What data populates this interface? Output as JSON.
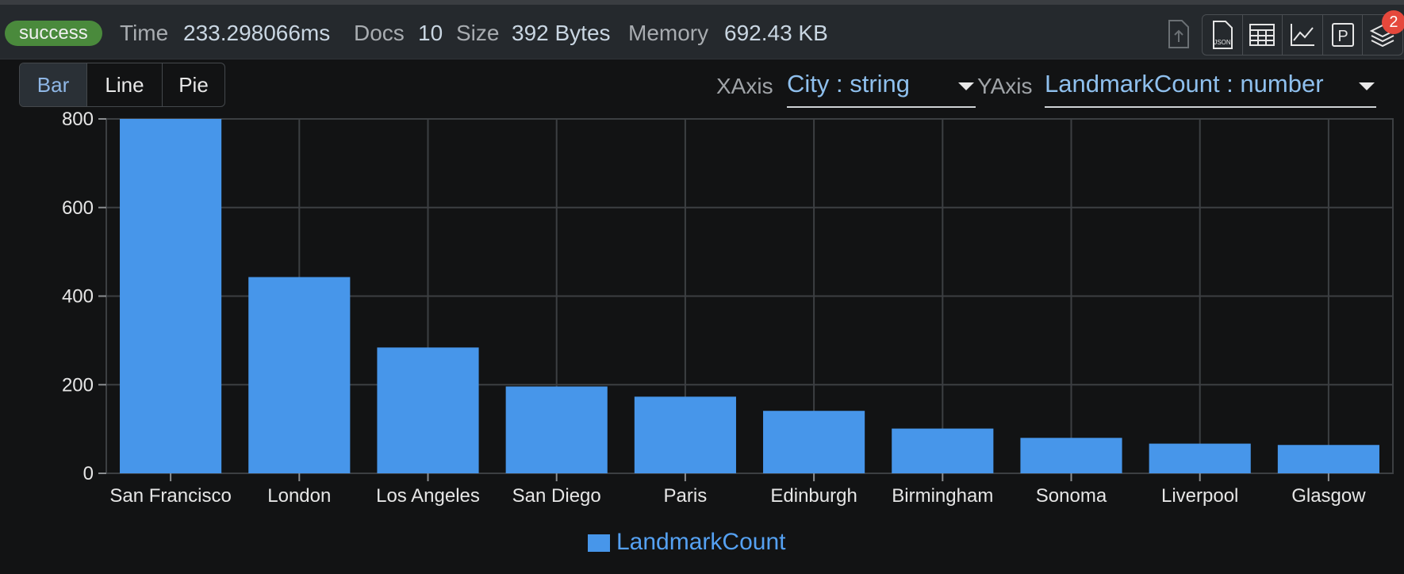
{
  "status": {
    "badge": "success",
    "time_label": "Time",
    "time_value": "233.298066ms",
    "docs_label": "Docs",
    "docs_value": "10",
    "size_label": "Size",
    "size_value": "392 Bytes",
    "memory_label": "Memory",
    "memory_value": "692.43 KB"
  },
  "toolbar": {
    "icons": [
      "upload-icon",
      "json-file-icon",
      "table-icon",
      "line-chart-icon",
      "p-icon",
      "stack-icon"
    ],
    "json_icon_text": "JSON",
    "p_icon_text": "P",
    "notification_count": "2"
  },
  "chart_types": {
    "bar": "Bar",
    "line": "Line",
    "pie": "Pie",
    "active": "Bar"
  },
  "axes": {
    "x_label": "XAxis",
    "x_value": "City : string",
    "y_label": "YAxis",
    "y_value": "LandmarkCount : number"
  },
  "colors": {
    "bar": "#4796ea",
    "success": "#4a8a3c",
    "accent": "#8fc0ee",
    "badge_red": "#e5483c"
  },
  "chart_data": {
    "type": "bar",
    "categories": [
      "San Francisco",
      "London",
      "Los Angeles",
      "San Diego",
      "Paris",
      "Edinburgh",
      "Birmingham",
      "Sonoma",
      "Liverpool",
      "Glasgow"
    ],
    "series": [
      {
        "name": "LandmarkCount",
        "values": [
          800,
          443,
          284,
          196,
          173,
          141,
          101,
          80,
          67,
          64
        ]
      }
    ],
    "ylim": [
      0,
      800
    ],
    "yticks": [
      0,
      200,
      400,
      600,
      800
    ],
    "grid": true,
    "legend": "bottom-center"
  }
}
